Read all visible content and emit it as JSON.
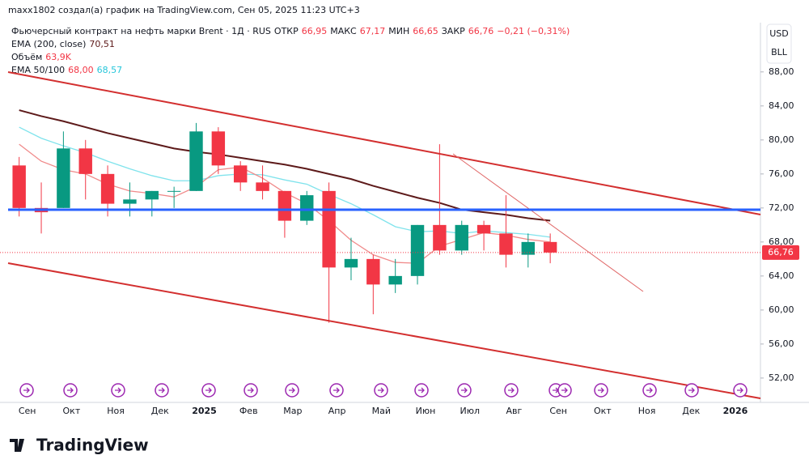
{
  "header": {
    "caption": "maxx1802 создал(а) график на TradingView.com, Сен 05, 2025 11:23 UTC+3",
    "symbol": "Фьючерсный контракт на нефть марки Brent · 1Д · RUS",
    "open_label": "ОТКР",
    "open": "66,95",
    "high_label": "МАКС",
    "high": "67,17",
    "low_label": "МИН",
    "low": "66,65",
    "close_label": "ЗАКР",
    "close": "66,76",
    "change": "−0,21 (−0,31%)",
    "ema200_label": "EMA (200, close)",
    "ema200": "70,51",
    "volume_label": "Объём",
    "volume": "63,9K",
    "ema50_100_label": "EMA 50/100",
    "ema50": "68,00",
    "ema100": "68,57",
    "currency": "USD",
    "unit": "BLL",
    "logo": "TradingView"
  },
  "chart_data": {
    "type": "candlestick",
    "up_color": "#089981",
    "down_color": "#f23645",
    "categories": [
      "Сен",
      null,
      "Окт",
      null,
      "Ноя",
      null,
      "Дек",
      null,
      "2025",
      null,
      "Фев",
      null,
      "Мар",
      null,
      "Апр",
      null,
      "Май",
      null,
      "Июн",
      null,
      "Июл",
      null,
      "Авг",
      null,
      "Сен",
      null,
      "Окт",
      null,
      "Ноя",
      null,
      "Дек",
      null,
      "2026",
      null
    ],
    "open": [
      77,
      72,
      72,
      79,
      76,
      72.5,
      73,
      74,
      74,
      81,
      77,
      75,
      74,
      70.5,
      74,
      65,
      66,
      63,
      64,
      70,
      67,
      70,
      69,
      66.5,
      68,
      null,
      null,
      null,
      null,
      null,
      null,
      null,
      null,
      null
    ],
    "high": [
      78,
      75,
      81,
      80,
      77,
      75,
      74,
      74.5,
      82,
      81.5,
      77.5,
      77,
      74,
      74,
      75,
      68.5,
      66.5,
      66,
      70,
      79.5,
      70.5,
      70.5,
      73.5,
      69,
      69,
      null,
      null,
      null,
      null,
      null,
      null,
      null,
      null,
      null
    ],
    "low": [
      71,
      69,
      72,
      73,
      71,
      71,
      71,
      72,
      74,
      76,
      74,
      73,
      68.5,
      70,
      58.5,
      63.5,
      59.5,
      62,
      63,
      66.5,
      66.5,
      67,
      65,
      65,
      65.5,
      null,
      null,
      null,
      null,
      null,
      null,
      null,
      null,
      null
    ],
    "close": [
      72,
      71.5,
      79,
      76,
      72.5,
      73,
      74,
      74,
      81,
      77,
      75,
      74,
      70.5,
      73.5,
      65,
      66,
      63,
      64,
      70,
      67,
      70,
      69,
      66.5,
      68,
      66.76,
      null,
      null,
      null,
      null,
      null,
      null,
      null,
      null,
      null
    ],
    "series": [
      {
        "name": "EMA 200",
        "color": "#5d1a1a",
        "values": [
          83.5,
          82.8,
          82.2,
          81.5,
          80.8,
          80.2,
          79.6,
          79.0,
          78.6,
          78.3,
          77.9,
          77.5,
          77.1,
          76.6,
          76.0,
          75.4,
          74.6,
          73.9,
          73.2,
          72.6,
          71.8,
          71.5,
          71.2,
          70.8,
          70.51,
          null,
          null,
          null,
          null,
          null,
          null,
          null,
          null,
          null
        ]
      },
      {
        "name": "EMA 100",
        "color": "#7fe3ec",
        "values": [
          81.5,
          80.2,
          79.3,
          78.5,
          77.5,
          76.6,
          75.8,
          75.2,
          75.2,
          75.8,
          76.0,
          75.9,
          75.3,
          74.8,
          73.6,
          72.5,
          71.2,
          69.8,
          69.2,
          69.3,
          69.0,
          69.3,
          69.1,
          68.9,
          68.57,
          null,
          null,
          null,
          null,
          null,
          null,
          null,
          null,
          null
        ]
      },
      {
        "name": "EMA 50",
        "color": "#f08a8a",
        "values": [
          79.5,
          77.5,
          76.5,
          76.0,
          74.8,
          74.0,
          73.7,
          73.3,
          74.5,
          76.5,
          76.8,
          75.5,
          73.8,
          72.5,
          70.5,
          68.2,
          66.5,
          65.6,
          65.5,
          67.5,
          68.3,
          69.1,
          68.8,
          68.3,
          68.0,
          null,
          null,
          null,
          null,
          null,
          null,
          null,
          null,
          null
        ]
      }
    ],
    "ylim": [
      49.8,
      93.6
    ],
    "yticks": [
      {
        "value": 52,
        "label": "52,00"
      },
      {
        "value": 56,
        "label": "56,00"
      },
      {
        "value": 60,
        "label": "60,00"
      },
      {
        "value": 64,
        "label": "64,00"
      },
      {
        "value": 68,
        "label": "68,00"
      },
      {
        "value": 72,
        "label": "72,00"
      },
      {
        "value": 76,
        "label": "76,00"
      },
      {
        "value": 80,
        "label": "80,00"
      },
      {
        "value": 84,
        "label": "84,00"
      },
      {
        "value": 88,
        "label": "88,00"
      }
    ],
    "last_price": {
      "value": 66.76,
      "label": "66,76"
    },
    "last_color": "#f23645"
  }
}
